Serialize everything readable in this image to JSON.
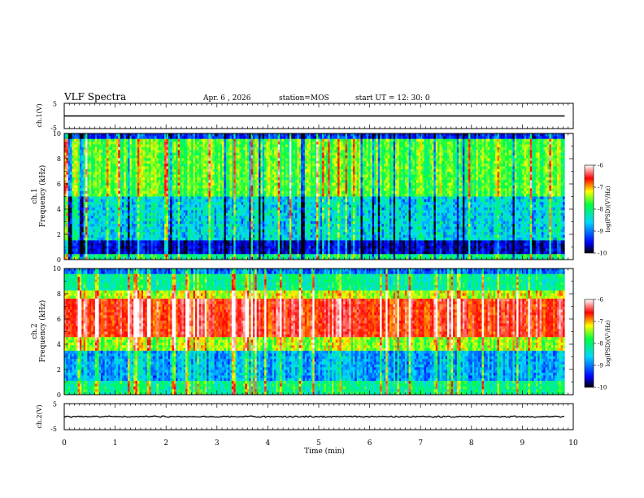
{
  "header": {
    "title": "VLF Spectra",
    "date": "Apr. 6 , 2026",
    "station": "station=MOS",
    "start": "start UT =  12: 30: 0"
  },
  "chart_data": [
    {
      "type": "line",
      "name": "waveform-ch1",
      "ylabel": "ch.1(V)",
      "ylim": [
        -5,
        5
      ],
      "yticks": [
        "5",
        "-5"
      ],
      "xlim": [
        0,
        10
      ],
      "level": 0
    },
    {
      "type": "heatmap",
      "name": "spectrogram-ch1",
      "ylabel_line1": "ch.1",
      "ylabel_line2": "Frequency (kHz)",
      "ylim": [
        0,
        10
      ],
      "yticks": [
        "0",
        "2",
        "4",
        "6",
        "8",
        "10"
      ],
      "xlim": [
        0,
        10
      ],
      "data_end_min": 9.83,
      "colorbar": {
        "label": "log(PSD)(V²/Hz)",
        "range": [
          -10,
          -6
        ],
        "ticks": [
          "-6",
          "-7",
          "-8",
          "-9",
          "-10"
        ]
      },
      "profile": "broadband"
    },
    {
      "type": "heatmap",
      "name": "spectrogram-ch2",
      "ylabel_line1": "ch.2",
      "ylabel_line2": "Frequency (kHz)",
      "ylim": [
        0,
        10
      ],
      "yticks": [
        "0",
        "2",
        "4",
        "6",
        "8",
        "10"
      ],
      "xlim": [
        0,
        10
      ],
      "data_end_min": 9.83,
      "colorbar": {
        "label": "log(PSD)(V²/Hz)",
        "range": [
          -10,
          -6
        ],
        "ticks": [
          "-6",
          "-7",
          "-8",
          "-9",
          "-10"
        ]
      },
      "profile": "strong band 4-8 kHz"
    },
    {
      "type": "line",
      "name": "waveform-ch2",
      "ylabel": "ch.2(V)",
      "ylim": [
        -5,
        5
      ],
      "yticks": [
        "5",
        "-5"
      ],
      "xlim": [
        0,
        10
      ],
      "level": 0
    }
  ],
  "xaxis": {
    "label": "Time (min)",
    "ticks": [
      "0",
      "1",
      "2",
      "3",
      "4",
      "5",
      "6",
      "7",
      "8",
      "9",
      "10"
    ]
  },
  "colors": {
    "background": "#ffffff",
    "axes": "#000000",
    "colormap": [
      "#000000",
      "#0000ff",
      "#00d8ff",
      "#00ff40",
      "#ffff00",
      "#ff0000",
      "#ffffff"
    ]
  }
}
